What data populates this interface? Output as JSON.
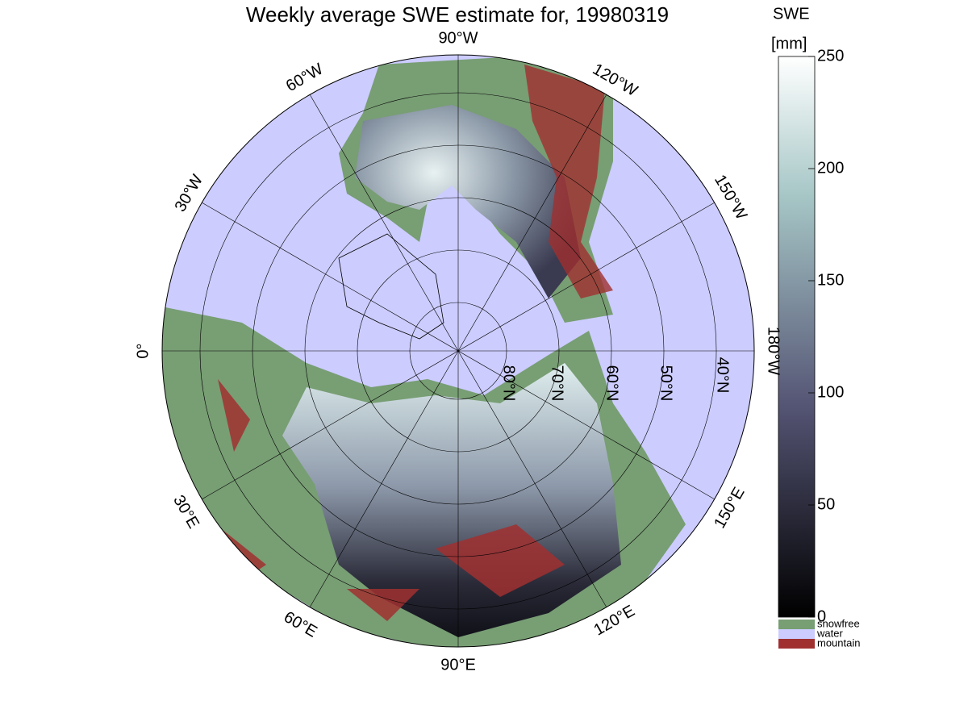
{
  "title": "Weekly average SWE estimate for, 19980319",
  "map": {
    "meridians": [
      "90°W",
      "120°W",
      "150°W",
      "180°W",
      "150°E",
      "120°E",
      "90°E",
      "60°E",
      "30°E",
      "0°",
      "30°W",
      "60°W"
    ],
    "parallels": [
      "80°N",
      "70°N",
      "60°N",
      "50°N",
      "40°N"
    ]
  },
  "colorbar": {
    "title": "SWE",
    "unit": "[mm]",
    "lim": [
      0,
      250
    ],
    "ticks": [
      0,
      50,
      100,
      150,
      200,
      250
    ]
  },
  "legend": [
    {
      "name": "snowfree",
      "color": "#789e74"
    },
    {
      "name": "water",
      "color": "#ccccff"
    },
    {
      "name": "mountain",
      "color": "#a03030"
    }
  ]
}
